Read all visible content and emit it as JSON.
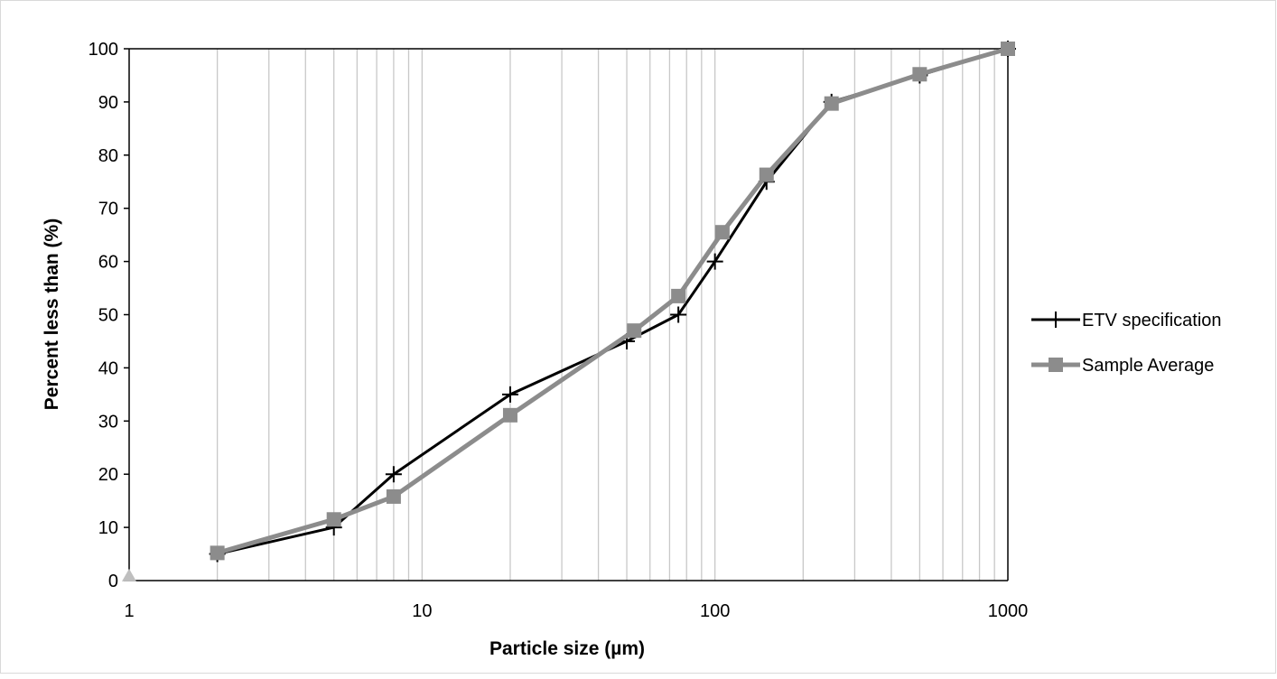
{
  "chart_data": {
    "type": "line",
    "title": "",
    "xlabel": "Particle size (µm)",
    "ylabel": "Percent less than (%)",
    "x_scale": "log",
    "xlim": [
      1,
      1000
    ],
    "ylim": [
      0,
      100
    ],
    "x_ticks": [
      "1",
      "10",
      "100",
      "1000"
    ],
    "y_ticks": [
      "0",
      "10",
      "20",
      "30",
      "40",
      "50",
      "60",
      "70",
      "80",
      "90",
      "100"
    ],
    "vertical_grid": "log minor and major gridlines",
    "horizontal_grid": false,
    "legend_position": "right",
    "series": [
      {
        "name": "ETV specification",
        "color": "#000000",
        "marker": "plus",
        "points": [
          [
            2,
            5
          ],
          [
            5,
            10
          ],
          [
            8,
            20
          ],
          [
            20,
            35
          ],
          [
            50,
            45
          ],
          [
            75,
            50
          ],
          [
            100,
            60
          ],
          [
            150,
            75
          ],
          [
            250,
            90
          ],
          [
            500,
            95
          ],
          [
            1000,
            100
          ]
        ]
      },
      {
        "name": "Sample Average",
        "color": "#8c8c8c",
        "marker": "square",
        "points": [
          [
            2,
            5.2
          ],
          [
            5,
            11.5
          ],
          [
            8,
            15.8
          ],
          [
            20,
            31.1
          ],
          [
            53,
            47
          ],
          [
            75,
            53.5
          ],
          [
            106,
            65.5
          ],
          [
            150,
            76.3
          ],
          [
            250,
            89.7
          ],
          [
            500,
            95.2
          ],
          [
            1000,
            100
          ]
        ]
      },
      {
        "name": "",
        "color": "#bfbfbf",
        "marker": "triangle",
        "points": [
          [
            1,
            0.7
          ]
        ]
      }
    ]
  }
}
